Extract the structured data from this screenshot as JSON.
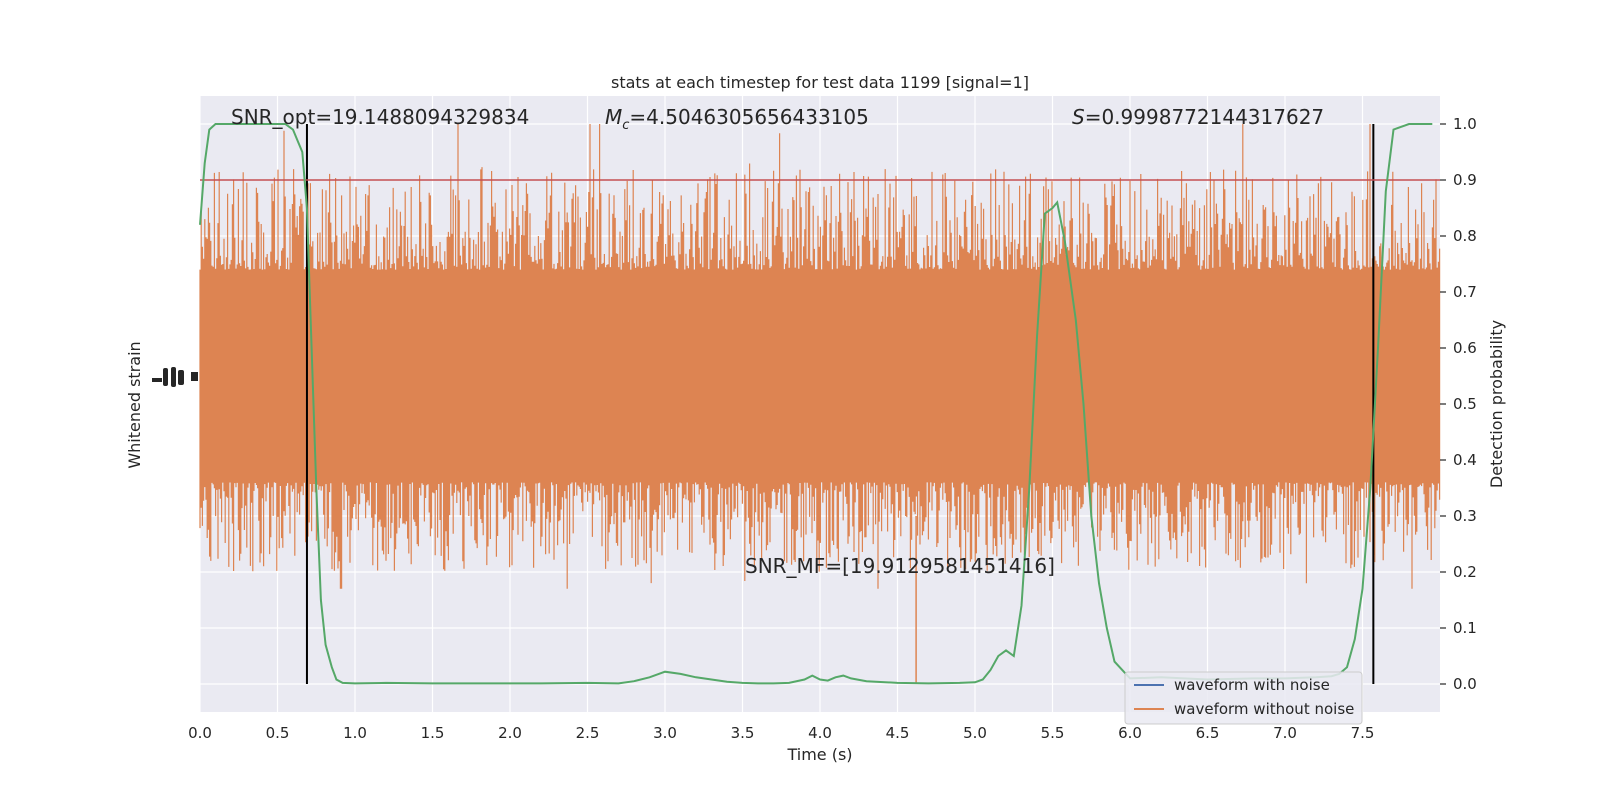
{
  "chart_data": {
    "type": "line",
    "title": "stats at each timestep for test data 1199 [signal=1]",
    "xlabel": "Time (s)",
    "ylabel_left": "Whitened strain",
    "ylabel_right": "Detection probability",
    "xlim": [
      0.0,
      8.0
    ],
    "ylim_right": [
      -0.05,
      1.05
    ],
    "x_ticks": [
      "0.0",
      "0.5",
      "1.0",
      "1.5",
      "2.0",
      "2.5",
      "3.0",
      "3.5",
      "4.0",
      "4.5",
      "5.0",
      "5.5",
      "6.0",
      "6.5",
      "7.0",
      "7.5"
    ],
    "x_tick_values": [
      0,
      0.5,
      1,
      1.5,
      2,
      2.5,
      3,
      3.5,
      4,
      4.5,
      5,
      5.5,
      6,
      6.5,
      7,
      7.5
    ],
    "y_right_ticks": [
      "0.0",
      "0.1",
      "0.2",
      "0.3",
      "0.4",
      "0.5",
      "0.6",
      "0.7",
      "0.8",
      "0.9",
      "1.0"
    ],
    "y_right_tick_values": [
      0,
      0.1,
      0.2,
      0.3,
      0.4,
      0.5,
      0.6,
      0.7,
      0.8,
      0.9,
      1.0
    ],
    "grid": true,
    "annotations": {
      "snr_opt": "SNR_opt=19.1488094329834",
      "mc_symbol": "M",
      "mc_sub": "c",
      "mc_value": "=4.5046305656433105",
      "s_symbol": "S",
      "s_value": "=0.9998772144317627",
      "snr_mf": "SNR_MF=[19.9129581451416]"
    },
    "threshold": {
      "y": 0.9,
      "color": "#c44e52"
    },
    "vertical_markers": [
      0.69,
      7.57
    ],
    "series": [
      {
        "name": "waveform with noise",
        "color": "#4c72b0",
        "kind": "legend-only"
      },
      {
        "name": "waveform without noise",
        "color": "#dd8452",
        "kind": "noise-band",
        "core_range": [
          0.4,
          0.7
        ],
        "spike_range": [
          0.17,
          1.0
        ]
      },
      {
        "color": "#55a868",
        "kind": "probability",
        "x": [
          0.0,
          0.03,
          0.06,
          0.1,
          0.15,
          0.2,
          0.3,
          0.4,
          0.5,
          0.55,
          0.6,
          0.63,
          0.66,
          0.69,
          0.72,
          0.75,
          0.78,
          0.81,
          0.85,
          0.88,
          0.92,
          1.0,
          1.2,
          1.5,
          1.8,
          2.0,
          2.2,
          2.5,
          2.7,
          2.8,
          2.9,
          3.0,
          3.1,
          3.2,
          3.3,
          3.4,
          3.5,
          3.6,
          3.7,
          3.8,
          3.9,
          3.95,
          4.0,
          4.05,
          4.1,
          4.15,
          4.2,
          4.3,
          4.5,
          4.7,
          4.9,
          5.0,
          5.05,
          5.1,
          5.15,
          5.2,
          5.25,
          5.3,
          5.35,
          5.4,
          5.45,
          5.5,
          5.53,
          5.58,
          5.65,
          5.7,
          5.75,
          5.8,
          5.85,
          5.9,
          6.0,
          6.2,
          6.5,
          6.8,
          7.0,
          7.2,
          7.3,
          7.35,
          7.4,
          7.45,
          7.5,
          7.55,
          7.6,
          7.65,
          7.7,
          7.8,
          7.95
        ],
        "y": [
          0.82,
          0.93,
          0.99,
          1.0,
          1.0,
          1.0,
          1.0,
          1.0,
          1.0,
          1.0,
          0.99,
          0.97,
          0.95,
          0.85,
          0.6,
          0.35,
          0.15,
          0.07,
          0.03,
          0.008,
          0.002,
          0.001,
          0.002,
          0.001,
          0.001,
          0.001,
          0.001,
          0.002,
          0.001,
          0.005,
          0.012,
          0.022,
          0.018,
          0.012,
          0.008,
          0.004,
          0.002,
          0.001,
          0.001,
          0.002,
          0.008,
          0.015,
          0.008,
          0.006,
          0.012,
          0.015,
          0.01,
          0.005,
          0.002,
          0.001,
          0.002,
          0.003,
          0.008,
          0.025,
          0.05,
          0.06,
          0.05,
          0.14,
          0.35,
          0.62,
          0.84,
          0.85,
          0.86,
          0.79,
          0.65,
          0.5,
          0.3,
          0.18,
          0.1,
          0.04,
          0.01,
          0.012,
          0.008,
          0.01,
          0.01,
          0.012,
          0.014,
          0.018,
          0.03,
          0.08,
          0.17,
          0.35,
          0.6,
          0.88,
          0.99,
          1.0,
          1.0
        ]
      }
    ],
    "legend_position": "lower-right"
  }
}
